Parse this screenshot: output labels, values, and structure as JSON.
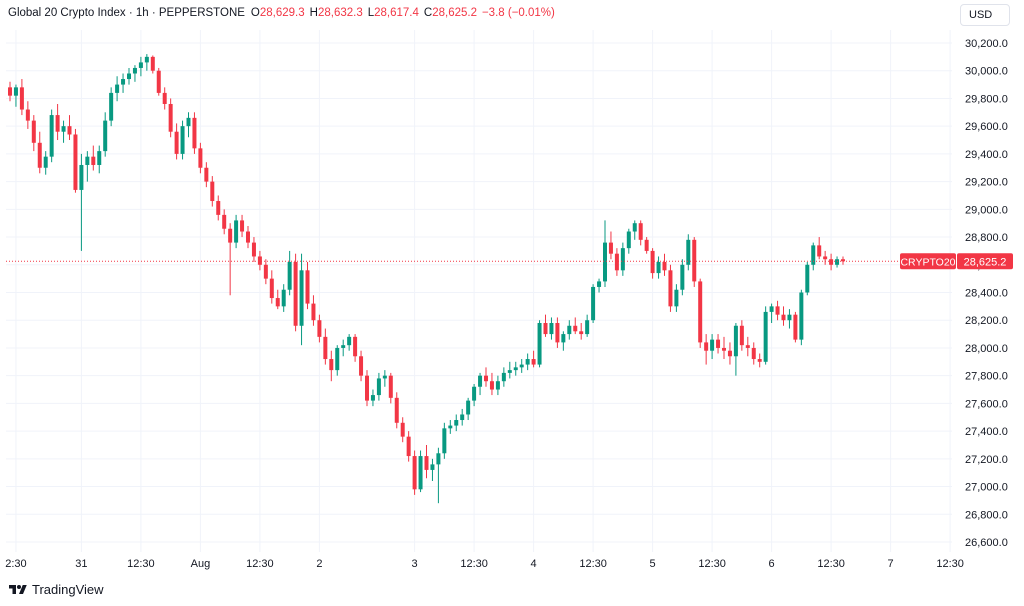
{
  "header": {
    "symbol": "Global 20 Crypto Index · 1h · PEPPERSTONE",
    "open_label": "O",
    "open_value": "28,629.3",
    "high_label": "H",
    "high_value": "28,632.3",
    "low_label": "L",
    "low_value": "28,617.4",
    "close_label": "C",
    "close_value": "28,625.2",
    "change_value": "−3.8 (−0.01%)"
  },
  "currency": "USD",
  "price_tag": {
    "ticker": "CRYPTO20",
    "price": "28,625.2"
  },
  "watermark": "TradingView",
  "colors": {
    "up": "#089981",
    "down": "#f23645",
    "grid": "#f0f3fa",
    "text": "#131722",
    "last_price_line": "#f23645"
  },
  "chart_data": {
    "type": "candlestick",
    "title": "Global 20 Crypto Index · 1h · PEPPERSTONE",
    "ylim": [
      26500,
      30300
    ],
    "y_ticks": [
      26600,
      26800,
      27000,
      27200,
      27400,
      27600,
      27800,
      28000,
      28200,
      28400,
      28600,
      28800,
      29000,
      29200,
      29400,
      29600,
      29800,
      30000,
      30200
    ],
    "y_tick_labels": [
      "26,600.0",
      "26,800.0",
      "27,000.0",
      "27,200.0",
      "27,400.0",
      "27,600.0",
      "27,800.0",
      "28,000.0",
      "28,200.0",
      "28,400.0",
      "28,600.0",
      "28,800.0",
      "29,000.0",
      "29,200.0",
      "29,400.0",
      "29,600.0",
      "29,800.0",
      "30,000.0",
      "30,200.0"
    ],
    "x_ticks": [
      {
        "label": "2:30",
        "bar": 1
      },
      {
        "label": "31",
        "bar": 12
      },
      {
        "label": "12:30",
        "bar": 22
      },
      {
        "label": "Aug",
        "bar": 32
      },
      {
        "label": "12:30",
        "bar": 42
      },
      {
        "label": "2",
        "bar": 52
      },
      {
        "label": "3",
        "bar": 68
      },
      {
        "label": "12:30",
        "bar": 78
      },
      {
        "label": "4",
        "bar": 88
      },
      {
        "label": "12:30",
        "bar": 98
      },
      {
        "label": "5",
        "bar": 108
      },
      {
        "label": "12:30",
        "bar": 118
      },
      {
        "label": "6",
        "bar": 128
      },
      {
        "label": "12:30",
        "bar": 138
      },
      {
        "label": "7",
        "bar": 148
      },
      {
        "label": "12:30",
        "bar": 158
      }
    ],
    "last_price": 28625.2,
    "candles": [
      [
        29880,
        29920,
        29780,
        29820
      ],
      [
        29820,
        29900,
        29740,
        29880
      ],
      [
        29880,
        29940,
        29680,
        29720
      ],
      [
        29720,
        29780,
        29580,
        29640
      ],
      [
        29640,
        29680,
        29420,
        29480
      ],
      [
        29480,
        29560,
        29260,
        29300
      ],
      [
        29300,
        29420,
        29250,
        29380
      ],
      [
        29380,
        29720,
        29340,
        29680
      ],
      [
        29680,
        29760,
        29500,
        29560
      ],
      [
        29560,
        29640,
        29480,
        29600
      ],
      [
        29600,
        29680,
        29500,
        29540
      ],
      [
        29540,
        29580,
        29120,
        29140
      ],
      [
        29140,
        29400,
        28700,
        29320
      ],
      [
        29320,
        29420,
        29200,
        29380
      ],
      [
        29380,
        29460,
        29280,
        29320
      ],
      [
        29320,
        29460,
        29260,
        29420
      ],
      [
        29420,
        29700,
        29380,
        29640
      ],
      [
        29640,
        29880,
        29600,
        29840
      ],
      [
        29840,
        29960,
        29780,
        29900
      ],
      [
        29900,
        29980,
        29840,
        29940
      ],
      [
        29940,
        30020,
        29900,
        29980
      ],
      [
        29980,
        30040,
        29920,
        30020
      ],
      [
        30020,
        30100,
        29960,
        30060
      ],
      [
        30060,
        30120,
        30000,
        30100
      ],
      [
        30100,
        30110,
        29980,
        30000
      ],
      [
        30000,
        30020,
        29820,
        29840
      ],
      [
        29840,
        29880,
        29720,
        29760
      ],
      [
        29760,
        29800,
        29520,
        29560
      ],
      [
        29560,
        29620,
        29360,
        29400
      ],
      [
        29400,
        29640,
        29360,
        29600
      ],
      [
        29600,
        29700,
        29520,
        29660
      ],
      [
        29660,
        29700,
        29400,
        29440
      ],
      [
        29440,
        29480,
        29260,
        29300
      ],
      [
        29300,
        29340,
        29160,
        29200
      ],
      [
        29200,
        29240,
        29020,
        29060
      ],
      [
        29060,
        29100,
        28920,
        28960
      ],
      [
        28960,
        29000,
        28820,
        28860
      ],
      [
        28860,
        28900,
        28380,
        28760
      ],
      [
        28760,
        28960,
        28720,
        28920
      ],
      [
        28920,
        28960,
        28800,
        28840
      ],
      [
        28840,
        28880,
        28720,
        28760
      ],
      [
        28760,
        28800,
        28620,
        28660
      ],
      [
        28660,
        28700,
        28560,
        28600
      ],
      [
        28600,
        28640,
        28460,
        28500
      ],
      [
        28500,
        28560,
        28320,
        28360
      ],
      [
        28360,
        28420,
        28280,
        28300
      ],
      [
        28300,
        28460,
        28260,
        28420
      ],
      [
        28420,
        28700,
        28380,
        28620
      ],
      [
        28620,
        28680,
        28120,
        28160
      ],
      [
        28160,
        28680,
        28020,
        28560
      ],
      [
        28560,
        28620,
        28280,
        28320
      ],
      [
        28320,
        28380,
        28160,
        28200
      ],
      [
        28200,
        28240,
        28040,
        28080
      ],
      [
        28080,
        28140,
        27880,
        27920
      ],
      [
        27920,
        27980,
        27760,
        27840
      ],
      [
        27840,
        28020,
        27800,
        28000
      ],
      [
        28000,
        28060,
        27940,
        28020
      ],
      [
        28020,
        28100,
        27980,
        28080
      ],
      [
        28080,
        28100,
        27900,
        27940
      ],
      [
        27940,
        27980,
        27760,
        27800
      ],
      [
        27800,
        27840,
        27580,
        27620
      ],
      [
        27620,
        27700,
        27580,
        27660
      ],
      [
        27660,
        27820,
        27620,
        27780
      ],
      [
        27780,
        27840,
        27720,
        27800
      ],
      [
        27800,
        27820,
        27600,
        27640
      ],
      [
        27640,
        27680,
        27420,
        27460
      ],
      [
        27460,
        27500,
        27320,
        27360
      ],
      [
        27360,
        27400,
        27180,
        27220
      ],
      [
        27220,
        27260,
        26940,
        26980
      ],
      [
        26980,
        27260,
        26960,
        27220
      ],
      [
        27220,
        27300,
        27060,
        27120
      ],
      [
        27120,
        27200,
        27040,
        27160
      ],
      [
        27160,
        27280,
        26880,
        27240
      ],
      [
        27240,
        27460,
        27200,
        27420
      ],
      [
        27420,
        27480,
        27380,
        27440
      ],
      [
        27440,
        27520,
        27400,
        27480
      ],
      [
        27480,
        27560,
        27440,
        27520
      ],
      [
        27520,
        27640,
        27480,
        27620
      ],
      [
        27620,
        27740,
        27580,
        27720
      ],
      [
        27720,
        27820,
        27660,
        27800
      ],
      [
        27800,
        27860,
        27720,
        27760
      ],
      [
        27760,
        27820,
        27660,
        27700
      ],
      [
        27700,
        27800,
        27660,
        27760
      ],
      [
        27760,
        27860,
        27720,
        27820
      ],
      [
        27820,
        27900,
        27780,
        27840
      ],
      [
        27840,
        27900,
        27800,
        27860
      ],
      [
        27860,
        27920,
        27820,
        27880
      ],
      [
        27880,
        27960,
        27840,
        27920
      ],
      [
        27920,
        27980,
        27860,
        27880
      ],
      [
        27880,
        28200,
        27860,
        28180
      ],
      [
        28180,
        28240,
        28080,
        28100
      ],
      [
        28100,
        28220,
        28060,
        28180
      ],
      [
        28180,
        28220,
        28000,
        28040
      ],
      [
        28040,
        28120,
        27980,
        28100
      ],
      [
        28100,
        28200,
        28060,
        28160
      ],
      [
        28160,
        28220,
        28100,
        28120
      ],
      [
        28120,
        28180,
        28060,
        28100
      ],
      [
        28100,
        28240,
        28080,
        28200
      ],
      [
        28200,
        28460,
        28180,
        28440
      ],
      [
        28440,
        28500,
        28400,
        28480
      ],
      [
        28480,
        28920,
        28440,
        28760
      ],
      [
        28760,
        28840,
        28640,
        28680
      ],
      [
        28680,
        28720,
        28520,
        28560
      ],
      [
        28560,
        28760,
        28520,
        28720
      ],
      [
        28720,
        28860,
        28680,
        28840
      ],
      [
        28840,
        28920,
        28780,
        28900
      ],
      [
        28900,
        28920,
        28740,
        28780
      ],
      [
        28780,
        28800,
        28680,
        28700
      ],
      [
        28700,
        28720,
        28500,
        28540
      ],
      [
        28540,
        28660,
        28500,
        28620
      ],
      [
        28620,
        28680,
        28520,
        28560
      ],
      [
        28560,
        28600,
        28260,
        28300
      ],
      [
        28300,
        28460,
        28260,
        28420
      ],
      [
        28420,
        28640,
        28380,
        28600
      ],
      [
        28600,
        28820,
        28560,
        28780
      ],
      [
        28780,
        28800,
        28440,
        28480
      ],
      [
        28480,
        28500,
        28000,
        28040
      ],
      [
        28040,
        28100,
        27880,
        27980
      ],
      [
        27980,
        28100,
        27920,
        28060
      ],
      [
        28060,
        28100,
        27960,
        28000
      ],
      [
        28000,
        28080,
        27920,
        27980
      ],
      [
        27980,
        28040,
        27880,
        27940
      ],
      [
        27940,
        28180,
        27800,
        28160
      ],
      [
        28160,
        28200,
        27980,
        28020
      ],
      [
        28020,
        28080,
        27940,
        28000
      ],
      [
        28000,
        28040,
        27880,
        27920
      ],
      [
        27920,
        27960,
        27860,
        27900
      ],
      [
        27900,
        28300,
        27880,
        28260
      ],
      [
        28260,
        28320,
        28180,
        28300
      ],
      [
        28300,
        28340,
        28200,
        28240
      ],
      [
        28240,
        28300,
        28160,
        28200
      ],
      [
        28200,
        28280,
        28140,
        28240
      ],
      [
        28240,
        28260,
        28040,
        28060
      ],
      [
        28060,
        28420,
        28020,
        28400
      ],
      [
        28400,
        28620,
        28380,
        28600
      ],
      [
        28600,
        28760,
        28560,
        28740
      ],
      [
        28740,
        28800,
        28640,
        28660
      ],
      [
        28660,
        28700,
        28600,
        28640
      ],
      [
        28640,
        28680,
        28560,
        28600
      ],
      [
        28600,
        28660,
        28580,
        28640
      ],
      [
        28640,
        28660,
        28600,
        28625
      ]
    ]
  }
}
